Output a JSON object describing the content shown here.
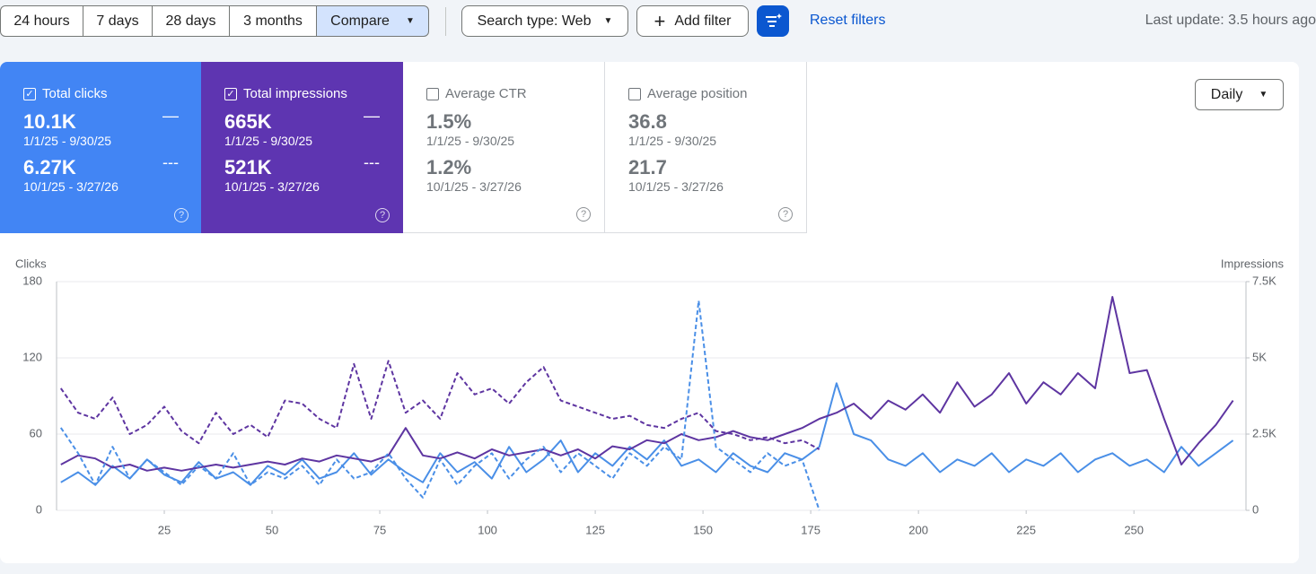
{
  "toolbar": {
    "ranges": [
      "24 hours",
      "7 days",
      "28 days",
      "3 months"
    ],
    "compare": "Compare",
    "search_type": "Search type: Web",
    "add_filter": "Add filter",
    "reset": "Reset filters",
    "last_update": "Last update: 3.5 hours ago"
  },
  "cards": [
    {
      "label": "Total clicks",
      "current": "10.1K",
      "current_range": "1/1/25 - 9/30/25",
      "previous": "6.27K",
      "previous_range": "10/1/25 - 3/27/26"
    },
    {
      "label": "Total impressions",
      "current": "665K",
      "current_range": "1/1/25 - 9/30/25",
      "previous": "521K",
      "previous_range": "10/1/25 - 3/27/26"
    },
    {
      "label": "Average CTR",
      "current": "1.5%",
      "current_range": "1/1/25 - 9/30/25",
      "previous": "1.2%",
      "previous_range": "10/1/25 - 3/27/26"
    },
    {
      "label": "Average position",
      "current": "36.8",
      "current_range": "1/1/25 - 9/30/25",
      "previous": "21.7",
      "previous_range": "10/1/25 - 3/27/26"
    }
  ],
  "granularity": "Daily",
  "chart_data": {
    "type": "line",
    "y_label": "Clicks",
    "y2_label": "Impressions",
    "x": [
      1,
      5,
      9,
      13,
      17,
      21,
      25,
      29,
      33,
      37,
      41,
      45,
      49,
      53,
      57,
      61,
      65,
      69,
      73,
      77,
      81,
      85,
      89,
      93,
      97,
      101,
      105,
      109,
      113,
      117,
      121,
      125,
      129,
      133,
      137,
      141,
      145,
      149,
      153,
      157,
      161,
      165,
      169,
      173,
      177,
      181,
      185,
      189,
      193,
      197,
      201,
      205,
      209,
      213,
      217,
      221,
      225,
      229,
      233,
      237,
      241,
      245,
      249,
      253,
      257,
      261,
      265,
      269,
      273
    ],
    "xlim": [
      0,
      276
    ],
    "xticks": [
      25,
      50,
      75,
      100,
      125,
      150,
      175,
      200,
      225,
      250
    ],
    "ylim": [
      0,
      180
    ],
    "yticks": [
      0,
      60,
      120,
      180
    ],
    "y2lim": [
      0,
      7500
    ],
    "y2ticks": [
      0,
      {
        "value": 2500,
        "label": "2.5K"
      },
      {
        "value": 5000,
        "label": "5K"
      },
      {
        "value": 7500,
        "label": "7.5K"
      }
    ],
    "grid": true,
    "series": [
      {
        "color": "#4a8fe7",
        "style": "solid",
        "values": [
          22,
          30,
          20,
          35,
          25,
          40,
          28,
          22,
          38,
          25,
          30,
          20,
          35,
          28,
          40,
          25,
          30,
          45,
          28,
          40,
          30,
          22,
          45,
          30,
          38,
          25,
          50,
          30,
          40,
          55,
          30,
          45,
          35,
          50,
          40,
          55,
          35,
          40,
          30,
          45,
          35,
          30,
          45,
          40,
          50,
          100,
          60,
          55,
          40,
          35,
          45,
          30,
          40,
          35,
          45,
          30,
          40,
          35,
          45,
          30,
          40,
          45,
          35,
          40,
          30,
          50,
          35,
          45,
          55
        ]
      },
      {
        "color": "#5e35a1",
        "style": "solid",
        "axis": "y2",
        "values": [
          1500,
          1800,
          1700,
          1400,
          1500,
          1300,
          1400,
          1300,
          1400,
          1500,
          1400,
          1500,
          1600,
          1500,
          1700,
          1600,
          1800,
          1700,
          1600,
          1800,
          2700,
          1800,
          1700,
          1900,
          1700,
          2000,
          1800,
          1900,
          2000,
          1800,
          2000,
          1700,
          2100,
          2000,
          2300,
          2200,
          2500,
          2300,
          2400,
          2600,
          2400,
          2300,
          2500,
          2700,
          3000,
          3200,
          3500,
          3000,
          3600,
          3300,
          3800,
          3200,
          4200,
          3400,
          3800,
          4500,
          3500,
          4200,
          3800,
          4500,
          4000,
          7000,
          4500,
          4600,
          3000,
          1500,
          2200,
          2800,
          3600
        ]
      },
      {
        "color": "#4a8fe7",
        "style": "dashed",
        "values": [
          65,
          45,
          20,
          50,
          25,
          40,
          30,
          20,
          35,
          25,
          45,
          20,
          30,
          25,
          35,
          20,
          40,
          25,
          30,
          45,
          25,
          10,
          40,
          20,
          35,
          45,
          25,
          40,
          50,
          30,
          45,
          35,
          25,
          45,
          35,
          50,
          40,
          165,
          50,
          40,
          30,
          45,
          35,
          40,
          0,
          null,
          null,
          null,
          null,
          null,
          null,
          null,
          null,
          null,
          null,
          null,
          null,
          null,
          null,
          null,
          null,
          null,
          null,
          null,
          null,
          null,
          null,
          null,
          null
        ]
      },
      {
        "color": "#5e35a1",
        "style": "dashed",
        "axis": "y2",
        "values": [
          4000,
          3200,
          3000,
          3700,
          2500,
          2800,
          3400,
          2600,
          2200,
          3200,
          2500,
          2800,
          2400,
          3600,
          3500,
          3000,
          2700,
          4800,
          3000,
          4900,
          3200,
          3600,
          3000,
          4500,
          3800,
          4000,
          3500,
          4200,
          4700,
          3600,
          3400,
          3200,
          3000,
          3100,
          2800,
          2700,
          3000,
          3200,
          2600,
          2500,
          2300,
          2400,
          2200,
          2300,
          2000,
          null,
          null,
          null,
          null,
          null,
          null,
          null,
          null,
          null,
          null,
          null,
          null,
          null,
          null,
          null,
          null,
          null,
          null,
          null,
          null,
          null,
          null,
          null,
          null
        ]
      }
    ]
  }
}
